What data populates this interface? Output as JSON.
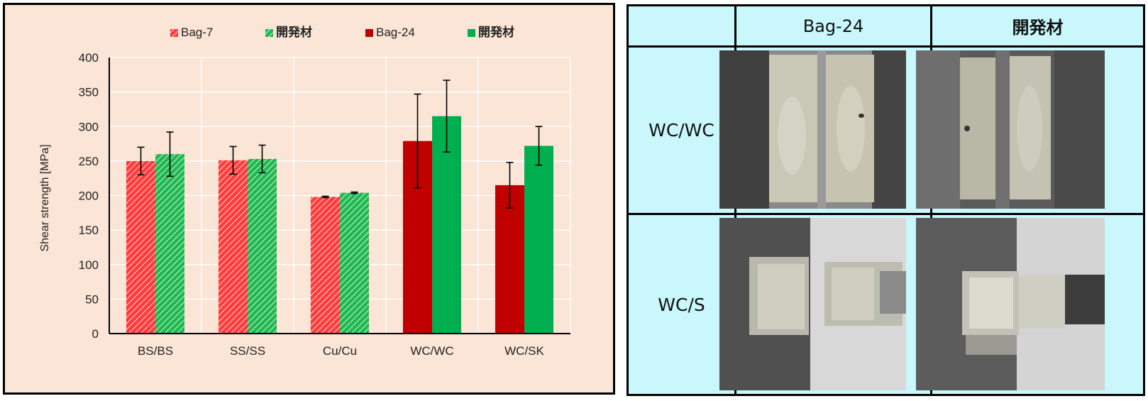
{
  "chart_data": {
    "type": "bar",
    "ylabel": "Shear strength [MPa]",
    "xlabel": "",
    "ylim": [
      0,
      400
    ],
    "yticks": [
      0,
      50,
      100,
      150,
      200,
      250,
      300,
      350,
      400
    ],
    "grid": true,
    "legend_position": "top",
    "categories": [
      "BS/BS",
      "SS/SS",
      "Cu/Cu",
      "WC/WC",
      "WC/SK"
    ],
    "series": [
      {
        "name": "Bag-7",
        "style": "hatched",
        "color": "#ff3b3b",
        "values": [
          250,
          251,
          198,
          null,
          null
        ],
        "errors": [
          20,
          20,
          1,
          null,
          null
        ]
      },
      {
        "name": "開発材",
        "style": "hatched",
        "color": "#20b850",
        "values": [
          260,
          253,
          204,
          null,
          null
        ],
        "errors": [
          32,
          20,
          1,
          null,
          null
        ]
      },
      {
        "name": "Bag-24",
        "style": "solid",
        "color": "#c00000",
        "values": [
          null,
          null,
          null,
          279,
          215
        ],
        "errors": [
          null,
          null,
          null,
          68,
          33
        ]
      },
      {
        "name": "開発材",
        "style": "solid",
        "color": "#00b050",
        "values": [
          null,
          null,
          null,
          315,
          272
        ],
        "errors": [
          null,
          null,
          null,
          52,
          28
        ]
      }
    ]
  },
  "table": {
    "columns": [
      "Bag-24",
      "開発材"
    ],
    "rows": [
      {
        "label": "WC/WC",
        "photos": [
          "wc-wc-bag24-photo",
          "wc-wc-dev-photo"
        ]
      },
      {
        "label": "WC/S",
        "photos": [
          "wc-s-bag24-photo",
          "wc-s-dev-photo"
        ]
      }
    ],
    "background_color": "#c9f7fb"
  }
}
